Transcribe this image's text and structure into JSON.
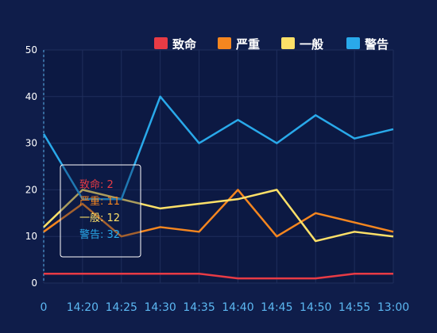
{
  "chart_data": {
    "type": "line",
    "x": [
      "0",
      "14:20",
      "14:25",
      "14:30",
      "14:35",
      "14:40",
      "14:45",
      "14:50",
      "14:55",
      "13:00"
    ],
    "ylim": [
      0,
      50
    ],
    "y_ticks": [
      "0",
      "10",
      "20",
      "30",
      "40",
      "50"
    ],
    "grid": true,
    "legend_position": "top-right",
    "series": [
      {
        "name": "致命",
        "color": "#e83b45",
        "values": [
          2,
          2,
          2,
          2,
          2,
          1,
          1,
          1,
          2,
          2
        ]
      },
      {
        "name": "严重",
        "color": "#f5861f",
        "values": [
          11,
          17,
          10,
          12,
          11,
          20,
          10,
          15,
          13,
          11
        ]
      },
      {
        "name": "一般",
        "color": "#fde068",
        "values": [
          12,
          20,
          18,
          16,
          17,
          18,
          20,
          9,
          11,
          10
        ]
      },
      {
        "name": "警告",
        "color": "#29a9ea",
        "values": [
          32,
          18,
          18,
          40,
          30,
          35,
          30,
          36,
          31,
          33
        ]
      }
    ],
    "tooltip": {
      "index": 0,
      "separator": ":"
    }
  },
  "colors": {
    "background": "#0f1d4a",
    "grid": "#1f2e5c",
    "plot_background": "#0c1943",
    "x_tick_text": "#5cb8f2",
    "y_tick_text": "#ffffff",
    "legend_text": "#ffffff",
    "axis_pointer": "#5cb8f2"
  }
}
